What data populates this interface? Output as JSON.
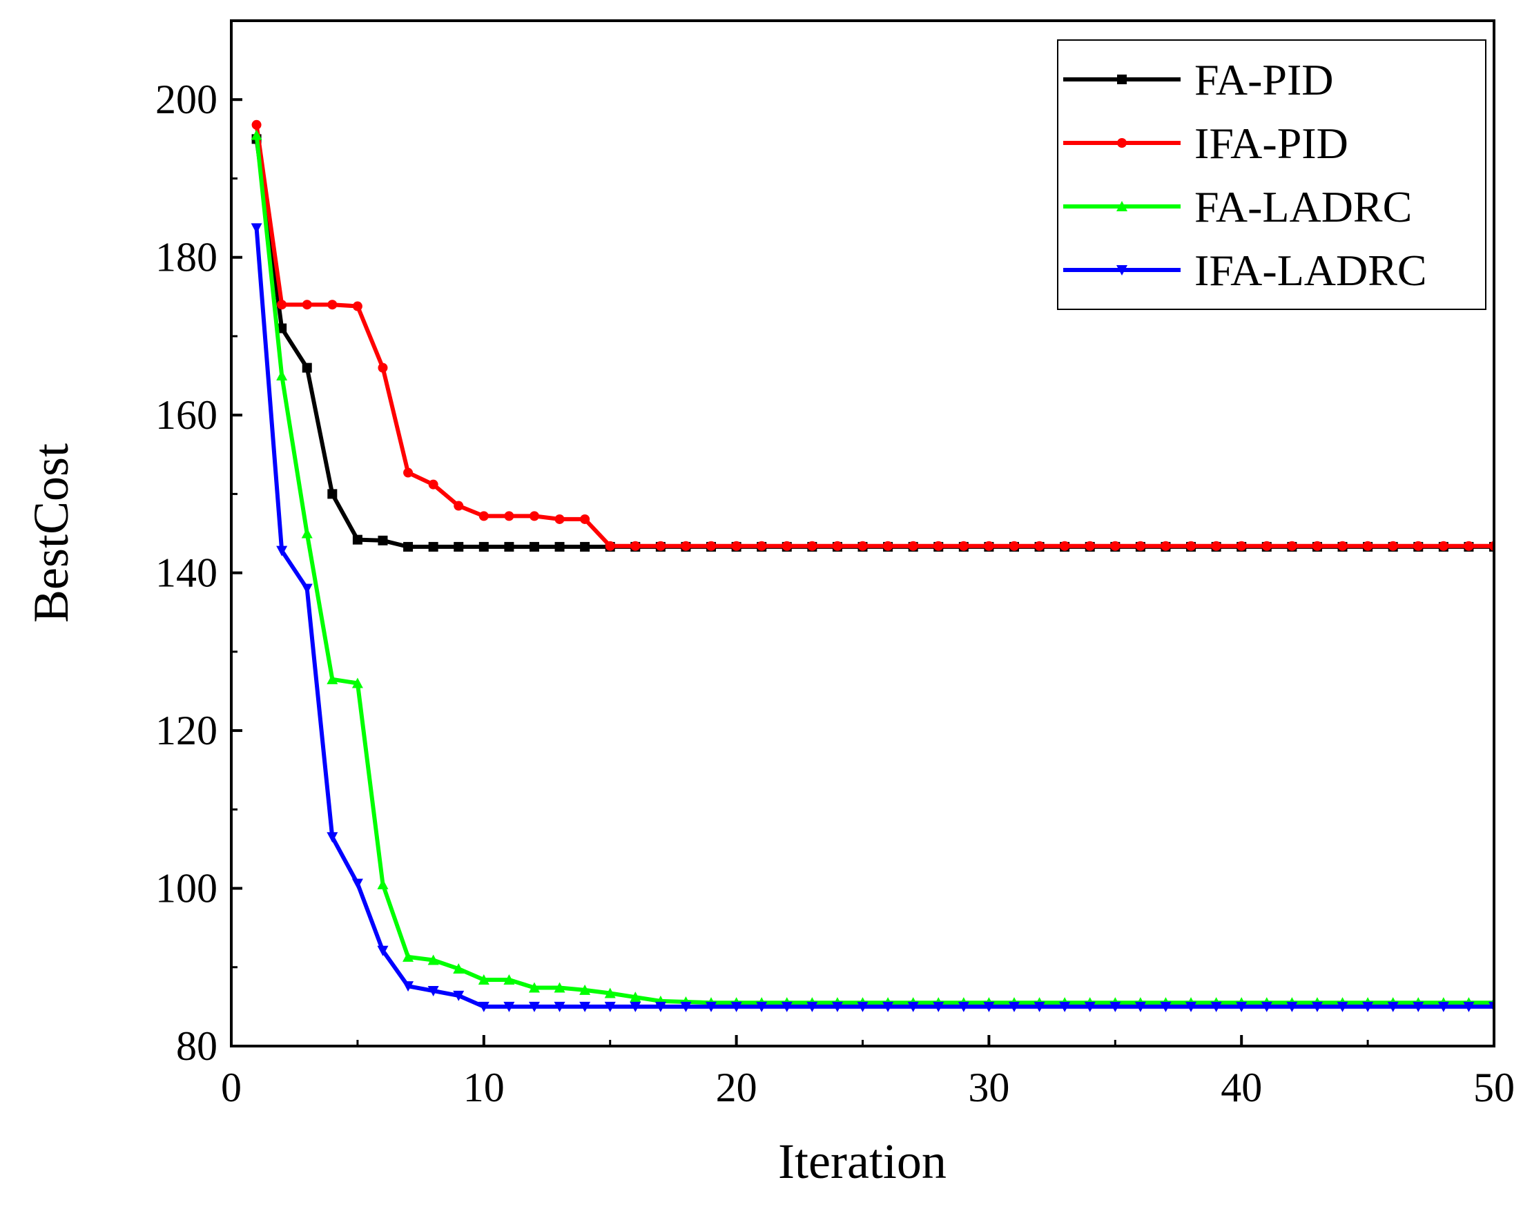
{
  "chart_data": {
    "type": "line",
    "title": "",
    "xlabel": "Iteration",
    "ylabel": "BestCost",
    "xlim": [
      0,
      50
    ],
    "ylim": [
      80,
      210
    ],
    "xticks": [
      0,
      10,
      20,
      30,
      40,
      50
    ],
    "yticks": [
      80,
      100,
      120,
      140,
      160,
      180,
      200
    ],
    "grid": false,
    "legend_position": "top-right",
    "x": [
      1,
      2,
      3,
      4,
      5,
      6,
      7,
      8,
      9,
      10,
      11,
      12,
      13,
      14,
      15,
      16,
      17,
      18,
      19,
      20,
      21,
      22,
      23,
      24,
      25,
      26,
      27,
      28,
      29,
      30,
      31,
      32,
      33,
      34,
      35,
      36,
      37,
      38,
      39,
      40,
      41,
      42,
      43,
      44,
      45,
      46,
      47,
      48,
      49,
      50
    ],
    "series": [
      {
        "name": "FA-PID",
        "color": "#000000",
        "marker": "square",
        "values": [
          195,
          171,
          166,
          150,
          144.2,
          144.1,
          143.3,
          143.3,
          143.3,
          143.3,
          143.3,
          143.3,
          143.3,
          143.3,
          143.3,
          143.3,
          143.3,
          143.3,
          143.3,
          143.3,
          143.3,
          143.3,
          143.3,
          143.3,
          143.3,
          143.3,
          143.3,
          143.3,
          143.3,
          143.3,
          143.3,
          143.3,
          143.3,
          143.3,
          143.3,
          143.3,
          143.3,
          143.3,
          143.3,
          143.3,
          143.3,
          143.3,
          143.3,
          143.3,
          143.3,
          143.3,
          143.3,
          143.3,
          143.3,
          143.3
        ]
      },
      {
        "name": "IFA-PID",
        "color": "#ff0000",
        "marker": "circle",
        "values": [
          196.8,
          174,
          174,
          174,
          173.8,
          166,
          152.7,
          151.2,
          148.5,
          147.2,
          147.2,
          147.2,
          146.8,
          146.8,
          143.4,
          143.4,
          143.4,
          143.4,
          143.4,
          143.4,
          143.4,
          143.4,
          143.4,
          143.4,
          143.4,
          143.4,
          143.4,
          143.4,
          143.4,
          143.4,
          143.4,
          143.4,
          143.4,
          143.4,
          143.4,
          143.4,
          143.4,
          143.4,
          143.4,
          143.4,
          143.4,
          143.4,
          143.4,
          143.4,
          143.4,
          143.4,
          143.4,
          143.4,
          143.4,
          143.4
        ]
      },
      {
        "name": "FA-LADRC",
        "color": "#00ff00",
        "marker": "triangle-up",
        "values": [
          195.5,
          165,
          145,
          126.5,
          126,
          100.5,
          91.3,
          90.9,
          89.8,
          88.4,
          88.4,
          87.4,
          87.4,
          87.1,
          86.7,
          86.2,
          85.7,
          85.6,
          85.5,
          85.5,
          85.5,
          85.5,
          85.5,
          85.5,
          85.5,
          85.5,
          85.5,
          85.5,
          85.5,
          85.5,
          85.5,
          85.5,
          85.5,
          85.5,
          85.5,
          85.5,
          85.5,
          85.5,
          85.5,
          85.5,
          85.5,
          85.5,
          85.5,
          85.5,
          85.5,
          85.5,
          85.5,
          85.5,
          85.5,
          85.5
        ]
      },
      {
        "name": "IFA-LADRC",
        "color": "#0000ff",
        "marker": "triangle-down",
        "values": [
          183.7,
          142.8,
          138,
          106.5,
          100.6,
          92.1,
          87.6,
          87,
          86.4,
          85,
          85,
          85,
          85,
          85,
          85,
          85,
          85,
          85,
          85,
          85,
          85,
          85,
          85,
          85,
          85,
          85,
          85,
          85,
          85,
          85,
          85,
          85,
          85,
          85,
          85,
          85,
          85,
          85,
          85,
          85,
          85,
          85,
          85,
          85,
          85,
          85,
          85,
          85,
          85,
          85
        ]
      }
    ]
  }
}
